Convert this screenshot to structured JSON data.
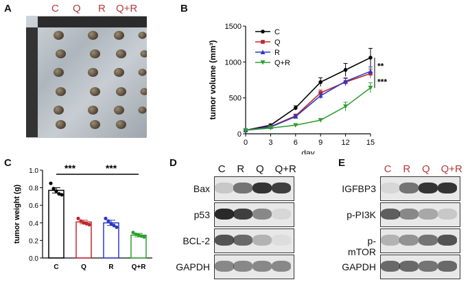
{
  "panels": {
    "A": {
      "letter": "A",
      "lanes": [
        "C",
        "Q",
        "R",
        "Q+R"
      ]
    },
    "B": {
      "letter": "B",
      "chart_data": {
        "type": "line",
        "x": [
          0,
          3,
          6,
          9,
          12,
          15
        ],
        "xlabel": "day",
        "ylabel": "tumor volume (mm³)",
        "ylim": [
          0,
          1500
        ],
        "yticks": [
          0,
          500,
          1000,
          1500
        ],
        "series": [
          {
            "name": "C",
            "color": "#000000",
            "marker": "circle",
            "values": [
              50,
              120,
              360,
              720,
              890,
              1060
            ],
            "err": [
              10,
              15,
              30,
              60,
              90,
              130
            ]
          },
          {
            "name": "Q",
            "color": "#c0262d",
            "marker": "square",
            "values": [
              50,
              100,
              250,
              570,
              720,
              840
            ],
            "err": [
              10,
              15,
              25,
              40,
              50,
              60
            ]
          },
          {
            "name": "R",
            "color": "#2b39c4",
            "marker": "triangle-up",
            "values": [
              50,
              95,
              240,
              530,
              730,
              870
            ],
            "err": [
              10,
              15,
              25,
              40,
              50,
              60
            ]
          },
          {
            "name": "Q+R",
            "color": "#2ea02e",
            "marker": "triangle-down",
            "values": [
              50,
              80,
              120,
              190,
              380,
              640
            ],
            "err": [
              10,
              10,
              15,
              20,
              60,
              70
            ]
          }
        ],
        "annotations": [
          "**",
          "***"
        ],
        "legend": "top-left"
      }
    },
    "C": {
      "letter": "C",
      "chart_data": {
        "type": "bar",
        "categories": [
          "C",
          "Q",
          "R",
          "Q+R"
        ],
        "values": [
          0.77,
          0.41,
          0.4,
          0.26
        ],
        "err": [
          0.03,
          0.02,
          0.03,
          0.02
        ],
        "points": [
          [
            0.85,
            0.79,
            0.76,
            0.73,
            0.72
          ],
          [
            0.45,
            0.42,
            0.4,
            0.39,
            0.38
          ],
          [
            0.45,
            0.42,
            0.39,
            0.37,
            0.35
          ],
          [
            0.29,
            0.27,
            0.26,
            0.25,
            0.24
          ]
        ],
        "colors": [
          "#000000",
          "#c0262d",
          "#2b39c4",
          "#2ea02e"
        ],
        "ylabel": "tumor weight (g)",
        "ylim": [
          0,
          1.0
        ],
        "yticks": [
          "0.0",
          "0.2",
          "0.4",
          "0.6",
          "0.8",
          "1.0"
        ],
        "sig": [
          "***",
          "***"
        ]
      }
    },
    "D": {
      "letter": "D",
      "lanes": [
        "C",
        "R",
        "Q",
        "Q+R"
      ],
      "rows": [
        "Bax",
        "p53",
        "BCL-2",
        "GAPDH"
      ]
    },
    "E": {
      "letter": "E",
      "lanes": [
        "C",
        "R",
        "Q",
        "Q+R"
      ],
      "rows": [
        "IGFBP3",
        "p-PI3K",
        "p-mTOR",
        "GAPDH"
      ]
    }
  }
}
